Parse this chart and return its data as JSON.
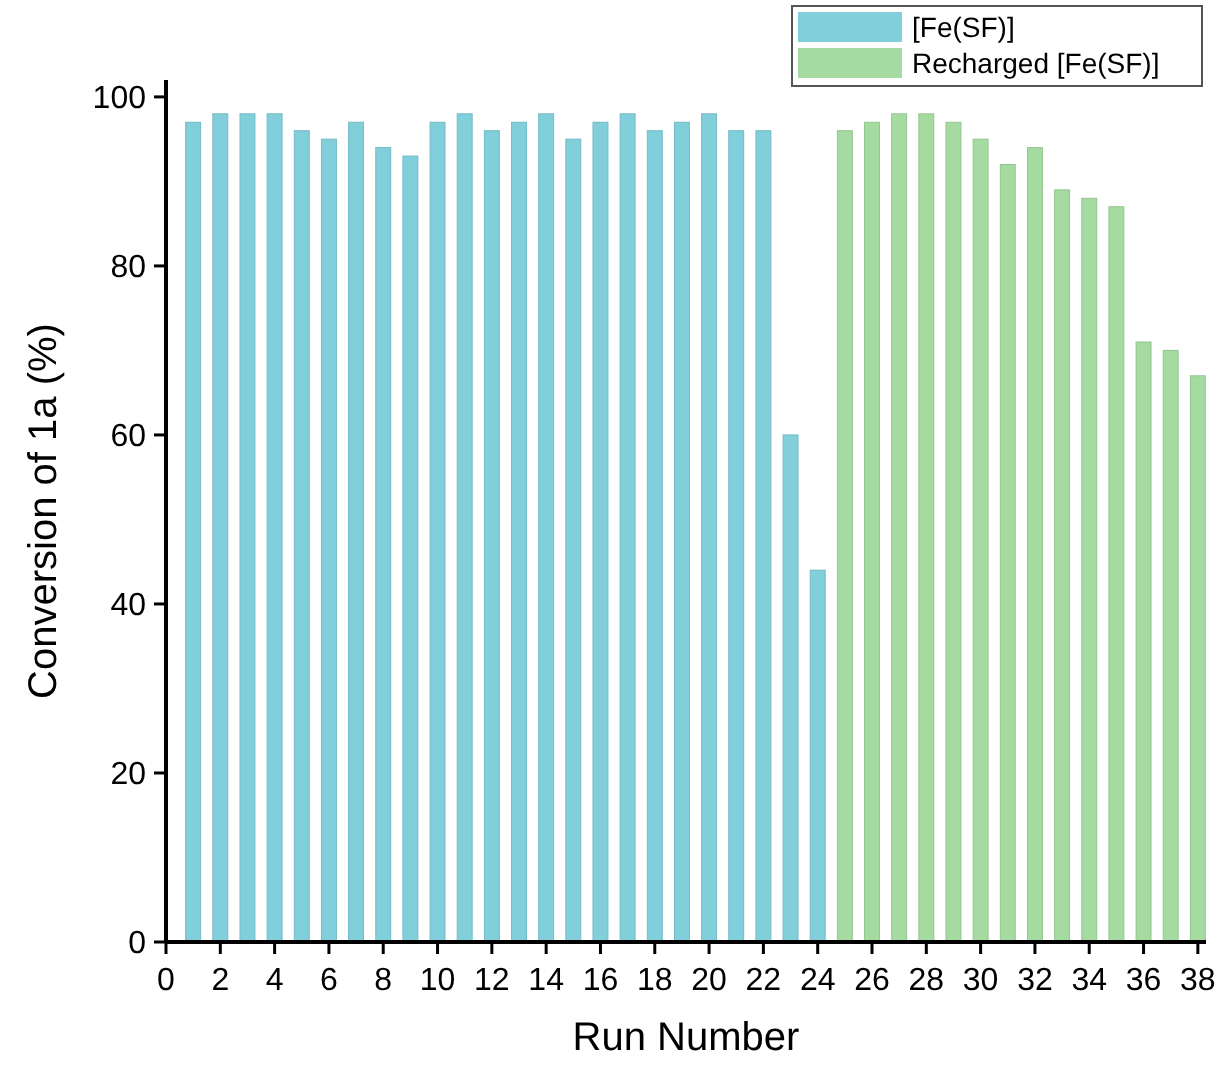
{
  "chart_data": {
    "type": "bar",
    "xlabel": "Run Number",
    "ylabel": "Conversion of 1a (%)",
    "series": [
      {
        "name": "[Fe(SF)]",
        "color": "#80cfdb",
        "x": [
          1,
          2,
          3,
          4,
          5,
          6,
          7,
          8,
          9,
          10,
          11,
          12,
          13,
          14,
          15,
          16,
          17,
          18,
          19,
          20,
          21,
          22,
          23,
          24
        ],
        "values": [
          97,
          98,
          98,
          98,
          96,
          95,
          97,
          94,
          93,
          97,
          98,
          96,
          97,
          98,
          95,
          97,
          98,
          96,
          97,
          98,
          96,
          96,
          60,
          44
        ]
      },
      {
        "name": "Recharged [Fe(SF)]",
        "color": "#a5dba0",
        "x": [
          25,
          26,
          27,
          28,
          29,
          30,
          31,
          32,
          33,
          34,
          35,
          36,
          37,
          38
        ],
        "values": [
          96,
          97,
          98,
          98,
          97,
          95,
          92,
          94,
          89,
          88,
          87,
          71,
          70,
          67
        ]
      }
    ],
    "xlim": [
      0,
      38.3
    ],
    "xticks": [
      0,
      2,
      4,
      6,
      8,
      10,
      12,
      14,
      16,
      18,
      20,
      22,
      24,
      26,
      28,
      30,
      32,
      34,
      36,
      38
    ],
    "ylim": [
      0,
      102
    ],
    "yticks": [
      0,
      20,
      40,
      60,
      80,
      100
    ],
    "legend": "top right"
  }
}
